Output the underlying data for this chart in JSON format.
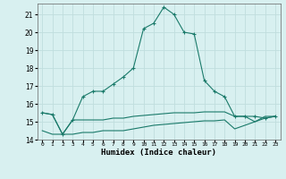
{
  "xlabel": "Humidex (Indice chaleur)",
  "x": [
    0,
    1,
    2,
    3,
    4,
    5,
    6,
    7,
    8,
    9,
    10,
    11,
    12,
    13,
    14,
    15,
    16,
    17,
    18,
    19,
    20,
    21,
    22,
    23
  ],
  "line1": [
    15.5,
    15.4,
    14.3,
    15.1,
    16.4,
    16.7,
    16.7,
    17.1,
    17.5,
    18.0,
    20.2,
    20.5,
    21.4,
    21.0,
    20.0,
    19.9,
    17.3,
    16.7,
    16.4,
    15.3,
    15.3,
    15.3,
    15.2,
    15.3
  ],
  "line2": [
    15.5,
    15.4,
    14.3,
    15.1,
    15.1,
    15.1,
    15.1,
    15.2,
    15.2,
    15.3,
    15.35,
    15.4,
    15.45,
    15.5,
    15.5,
    15.5,
    15.55,
    15.55,
    15.55,
    15.3,
    15.3,
    15.0,
    15.3,
    15.3
  ],
  "line3": [
    14.5,
    14.3,
    14.3,
    14.3,
    14.4,
    14.4,
    14.5,
    14.5,
    14.5,
    14.6,
    14.7,
    14.8,
    14.85,
    14.9,
    14.95,
    15.0,
    15.05,
    15.05,
    15.1,
    14.6,
    14.8,
    15.0,
    15.2,
    15.3
  ],
  "line_color": "#1a7a6a",
  "bg_color": "#d8f0f0",
  "grid_color": "#c0dede",
  "ylim": [
    14,
    21.6
  ],
  "yticks": [
    14,
    15,
    16,
    17,
    18,
    19,
    20,
    21
  ],
  "xlim": [
    -0.5,
    23.5
  ],
  "xtick_labels": [
    "0",
    "1",
    "2",
    "3",
    "4",
    "5",
    "6",
    "7",
    "8",
    "9",
    "10",
    "11",
    "12",
    "13",
    "14",
    "15",
    "16",
    "17",
    "18",
    "19",
    "20",
    "21",
    "22",
    "23"
  ]
}
